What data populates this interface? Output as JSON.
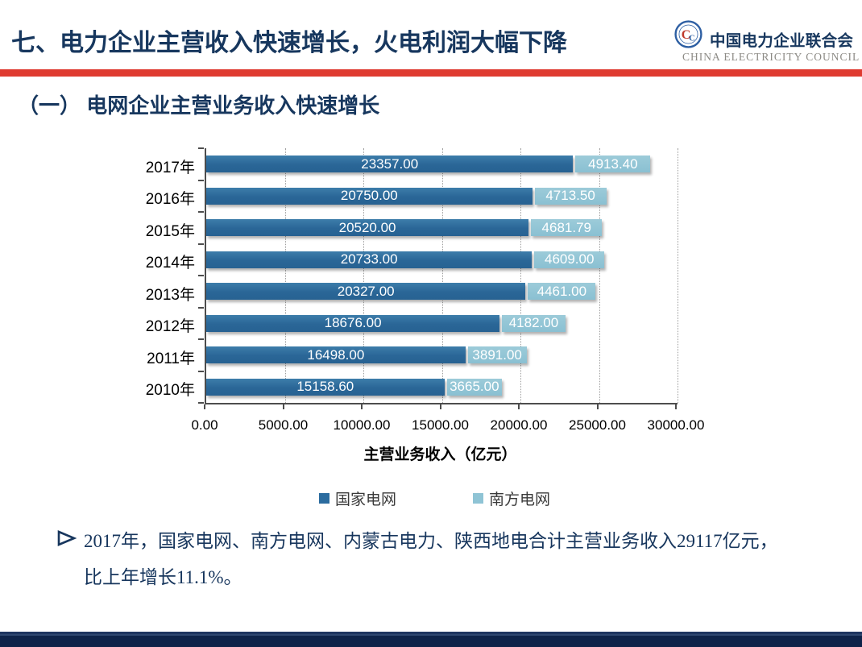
{
  "header": {
    "title": "七、电力企业主营收入快速增长，火电利润大幅下降",
    "logo": {
      "org_cn": "中国电力企业联合会",
      "org_en": "CHINA ELECTRICITY COUNCIL",
      "emblem_icon": "cec-round-seal",
      "ring_color": "#2e5fa3",
      "monogram_red": "#c0392b"
    }
  },
  "section": {
    "heading": "（一）  电网企业主营业务收入快速增长"
  },
  "chart_data": {
    "type": "bar",
    "orientation": "horizontal",
    "stacked": true,
    "categories": [
      "2017年",
      "2016年",
      "2015年",
      "2014年",
      "2013年",
      "2012年",
      "2011年",
      "2010年"
    ],
    "series": [
      {
        "name": "国家电网",
        "color": "#2b6c9f",
        "values": [
          23357.0,
          20750.0,
          20520.0,
          20733.0,
          20327.0,
          18676.0,
          16498.0,
          15158.6
        ]
      },
      {
        "name": "南方电网",
        "color": "#8fc4d5",
        "values": [
          4913.4,
          4713.5,
          4681.79,
          4609.0,
          4461.0,
          4182.0,
          3891.0,
          3665.0
        ]
      }
    ],
    "xlabel": "主营业务收入（亿元）",
    "xlim": [
      0,
      30000
    ],
    "xtick_step": 5000,
    "xtick_labels": [
      "0.00",
      "5000.00",
      "10000.00",
      "15000.00",
      "20000.00",
      "25000.00",
      "30000.00"
    ],
    "value_label_decimals": 2,
    "grid": "vertical-dotted",
    "legend_position": "bottom"
  },
  "bullet": {
    "marker_icon": "arrow-right-bullet",
    "lines": [
      "2017年，国家电网、南方电网、内蒙古电力、陕西地电合计主营业务收入29117亿元，",
      "比上年增长11.1%。"
    ]
  },
  "colors": {
    "accent_red": "#df3b31",
    "navy": "#17375e",
    "footer_navy": "#0e2349"
  }
}
